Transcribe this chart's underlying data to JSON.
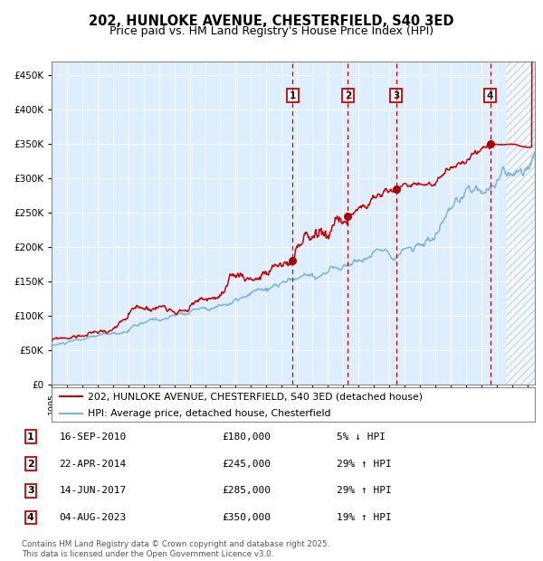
{
  "title": "202, HUNLOKE AVENUE, CHESTERFIELD, S40 3ED",
  "subtitle": "Price paid vs. HM Land Registry's House Price Index (HPI)",
  "ylim": [
    0,
    470000
  ],
  "yticks": [
    0,
    50000,
    100000,
    150000,
    200000,
    250000,
    300000,
    350000,
    400000,
    450000
  ],
  "xlim_start": 1995.0,
  "xlim_end": 2026.5,
  "transactions": [
    {
      "num": 1,
      "date": "16-SEP-2010",
      "year": 2010.71,
      "price": 180000,
      "pct": "5%",
      "dir": "↓"
    },
    {
      "num": 2,
      "date": "22-APR-2014",
      "year": 2014.31,
      "price": 245000,
      "pct": "29%",
      "dir": "↑"
    },
    {
      "num": 3,
      "date": "14-JUN-2017",
      "year": 2017.45,
      "price": 285000,
      "pct": "29%",
      "dir": "↑"
    },
    {
      "num": 4,
      "date": "04-AUG-2023",
      "year": 2023.59,
      "price": 350000,
      "pct": "19%",
      "dir": "↑"
    }
  ],
  "hpi_color": "#7ab3d4",
  "price_color": "#cc0000",
  "marker_color": "#aa0000",
  "vline_color": "#cc0000",
  "box_facecolor": "white",
  "box_edgecolor": "#cc0000",
  "background_plot": "#ddeeff",
  "grid_color": "#ffffff",
  "legend_line1": "202, HUNLOKE AVENUE, CHESTERFIELD, S40 3ED (detached house)",
  "legend_line2": "HPI: Average price, detached house, Chesterfield",
  "footer": "Contains HM Land Registry data © Crown copyright and database right 2025.\nThis data is licensed under the Open Government Licence v3.0.",
  "title_fontsize": 10.5,
  "subtitle_fontsize": 9,
  "hatch_region_start": 2024.6
}
